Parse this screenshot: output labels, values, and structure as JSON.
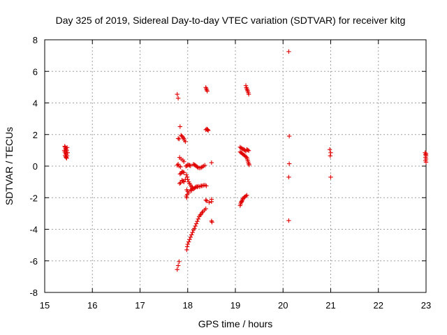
{
  "chart_data": {
    "type": "scatter",
    "title": "Day 325 of 2019, Sidereal Day-to-day VTEC variation (SDTVAR) for receiver kitg",
    "xlabel": "GPS time / hours",
    "ylabel": "SDTVAR / TECUs",
    "xlim": [
      15,
      23
    ],
    "ylim": [
      -8,
      8
    ],
    "xticks": [
      "15",
      "16",
      "17",
      "18",
      "19",
      "20",
      "21",
      "22",
      "23"
    ],
    "yticks": [
      "8",
      "6",
      "4",
      "2",
      "0",
      "-2",
      "-4",
      "-6",
      "-8"
    ],
    "grid": true,
    "marker": "+",
    "color": "#e00000",
    "series": [
      {
        "name": "SDTVAR",
        "points": [
          [
            15.42,
            1.25
          ],
          [
            15.43,
            1.2
          ],
          [
            15.44,
            1.12
          ],
          [
            15.45,
            1.05
          ],
          [
            15.46,
            0.98
          ],
          [
            15.42,
            0.9
          ],
          [
            15.44,
            0.82
          ],
          [
            15.45,
            0.75
          ],
          [
            15.43,
            0.68
          ],
          [
            15.44,
            0.6
          ],
          [
            15.45,
            0.55
          ],
          [
            15.46,
            0.5
          ],
          [
            15.41,
            1.0
          ],
          [
            15.47,
            1.18
          ],
          [
            15.48,
            0.85
          ],
          [
            15.47,
            0.65
          ],
          [
            17.78,
            4.55
          ],
          [
            17.8,
            4.3
          ],
          [
            17.84,
            2.5
          ],
          [
            17.86,
            1.95
          ],
          [
            17.88,
            1.9
          ],
          [
            17.9,
            1.82
          ],
          [
            17.92,
            1.75
          ],
          [
            17.93,
            1.65
          ],
          [
            17.95,
            1.55
          ],
          [
            17.8,
            1.75
          ],
          [
            17.82,
            1.72
          ],
          [
            17.83,
            0.55
          ],
          [
            17.86,
            0.45
          ],
          [
            17.9,
            0.38
          ],
          [
            17.92,
            0.28
          ],
          [
            17.8,
            0.12
          ],
          [
            17.78,
            0.05
          ],
          [
            17.82,
            0.0
          ],
          [
            17.85,
            -0.05
          ],
          [
            17.88,
            -0.35
          ],
          [
            17.9,
            -0.38
          ],
          [
            17.92,
            -0.4
          ],
          [
            17.86,
            -0.45
          ],
          [
            17.84,
            -0.5
          ],
          [
            17.88,
            -0.9
          ],
          [
            17.9,
            -0.95
          ],
          [
            17.92,
            -1.0
          ],
          [
            17.85,
            -1.05
          ],
          [
            17.83,
            -1.1
          ],
          [
            17.95,
            -0.85
          ],
          [
            17.96,
            0.0
          ],
          [
            17.98,
            0.02
          ],
          [
            18.0,
            0.05
          ],
          [
            18.02,
            0.08
          ],
          [
            18.04,
            0.05
          ],
          [
            18.06,
            0.02
          ],
          [
            17.97,
            -0.55
          ],
          [
            17.99,
            -0.7
          ],
          [
            18.0,
            -0.85
          ],
          [
            18.02,
            -1.0
          ],
          [
            18.04,
            -1.1
          ],
          [
            18.06,
            -1.2
          ],
          [
            18.08,
            -1.3
          ],
          [
            18.1,
            -1.38
          ],
          [
            17.98,
            -1.5
          ],
          [
            18.0,
            -1.6
          ],
          [
            18.02,
            -1.7
          ],
          [
            17.99,
            -1.8
          ],
          [
            17.97,
            -1.9
          ],
          [
            17.98,
            -2.0
          ],
          [
            18.12,
            0.12
          ],
          [
            18.14,
            0.08
          ],
          [
            18.16,
            0.05
          ],
          [
            18.18,
            0.0
          ],
          [
            18.2,
            -0.05
          ],
          [
            18.22,
            -0.1
          ],
          [
            18.25,
            -0.12
          ],
          [
            18.28,
            -0.1
          ],
          [
            18.3,
            -0.05
          ],
          [
            18.33,
            0.0
          ],
          [
            18.36,
            0.05
          ],
          [
            18.5,
            0.22
          ],
          [
            18.1,
            -1.4
          ],
          [
            18.12,
            -1.45
          ],
          [
            18.14,
            -1.4
          ],
          [
            18.16,
            -1.35
          ],
          [
            18.18,
            -1.3
          ],
          [
            18.2,
            -1.32
          ],
          [
            18.22,
            -1.28
          ],
          [
            18.25,
            -1.3
          ],
          [
            18.28,
            -1.25
          ],
          [
            18.3,
            -1.25
          ],
          [
            18.33,
            -1.22
          ],
          [
            18.36,
            -1.2
          ],
          [
            18.39,
            -1.25
          ],
          [
            18.06,
            -1.5
          ],
          [
            18.08,
            -1.55
          ],
          [
            18.38,
            4.98
          ],
          [
            18.39,
            4.9
          ],
          [
            18.4,
            4.82
          ],
          [
            18.41,
            4.75
          ],
          [
            18.4,
            2.35
          ],
          [
            18.41,
            2.32
          ],
          [
            18.42,
            2.3
          ],
          [
            18.43,
            2.25
          ],
          [
            18.38,
            2.3
          ],
          [
            18.38,
            -2.15
          ],
          [
            18.4,
            -2.2
          ],
          [
            18.45,
            -2.3
          ],
          [
            18.5,
            -2.1
          ],
          [
            18.5,
            -2.25
          ],
          [
            18.5,
            -3.48
          ],
          [
            18.51,
            -3.55
          ],
          [
            18.38,
            -2.7
          ],
          [
            18.35,
            -2.78
          ],
          [
            18.32,
            -2.88
          ],
          [
            18.3,
            -2.95
          ],
          [
            18.28,
            -3.05
          ],
          [
            18.26,
            -3.1
          ],
          [
            18.24,
            -3.2
          ],
          [
            18.22,
            -3.35
          ],
          [
            18.2,
            -3.5
          ],
          [
            18.18,
            -3.65
          ],
          [
            18.16,
            -3.8
          ],
          [
            18.14,
            -3.95
          ],
          [
            18.12,
            -4.05
          ],
          [
            18.1,
            -4.2
          ],
          [
            18.08,
            -4.35
          ],
          [
            18.06,
            -4.5
          ],
          [
            18.04,
            -4.65
          ],
          [
            18.02,
            -4.8
          ],
          [
            18.0,
            -4.95
          ],
          [
            17.99,
            -5.1
          ],
          [
            17.98,
            -5.3
          ],
          [
            17.82,
            -6.05
          ],
          [
            17.8,
            -6.3
          ],
          [
            17.78,
            -6.55
          ],
          [
            19.1,
            1.2
          ],
          [
            19.12,
            1.15
          ],
          [
            19.14,
            1.1
          ],
          [
            19.16,
            1.08
          ],
          [
            19.18,
            1.05
          ],
          [
            19.2,
            1.0
          ],
          [
            19.22,
            0.95
          ],
          [
            19.24,
            1.05
          ],
          [
            19.26,
            1.02
          ],
          [
            19.28,
            0.98
          ],
          [
            19.1,
            0.9
          ],
          [
            19.12,
            0.85
          ],
          [
            19.14,
            0.8
          ],
          [
            19.16,
            0.75
          ],
          [
            19.18,
            0.7
          ],
          [
            19.2,
            0.65
          ],
          [
            19.22,
            0.6
          ],
          [
            19.24,
            0.55
          ],
          [
            19.25,
            0.45
          ],
          [
            19.26,
            0.35
          ],
          [
            19.27,
            0.25
          ],
          [
            19.28,
            0.15
          ],
          [
            19.29,
            0.08
          ],
          [
            19.22,
            5.1
          ],
          [
            19.23,
            4.98
          ],
          [
            19.24,
            4.9
          ],
          [
            19.25,
            4.82
          ],
          [
            19.26,
            4.75
          ],
          [
            19.27,
            4.65
          ],
          [
            19.28,
            4.55
          ],
          [
            19.1,
            -2.5
          ],
          [
            19.11,
            -2.4
          ],
          [
            19.12,
            -2.3
          ],
          [
            19.13,
            -2.25
          ],
          [
            19.14,
            -2.2
          ],
          [
            19.15,
            -2.12
          ],
          [
            19.16,
            -2.05
          ],
          [
            19.18,
            -1.98
          ],
          [
            19.2,
            -1.95
          ],
          [
            19.22,
            -1.9
          ],
          [
            19.24,
            -1.85
          ],
          [
            20.12,
            7.25
          ],
          [
            20.13,
            1.9
          ],
          [
            20.13,
            0.15
          ],
          [
            20.12,
            -0.7
          ],
          [
            20.12,
            -3.45
          ],
          [
            20.98,
            1.05
          ],
          [
            21.0,
            0.85
          ],
          [
            20.99,
            0.65
          ],
          [
            21.0,
            -0.7
          ],
          [
            22.98,
            0.85
          ],
          [
            23.0,
            0.78
          ],
          [
            22.99,
            0.72
          ],
          [
            23.0,
            0.65
          ],
          [
            22.99,
            0.55
          ],
          [
            23.0,
            0.45
          ],
          [
            22.99,
            0.35
          ],
          [
            23.0,
            0.25
          ]
        ]
      }
    ]
  }
}
